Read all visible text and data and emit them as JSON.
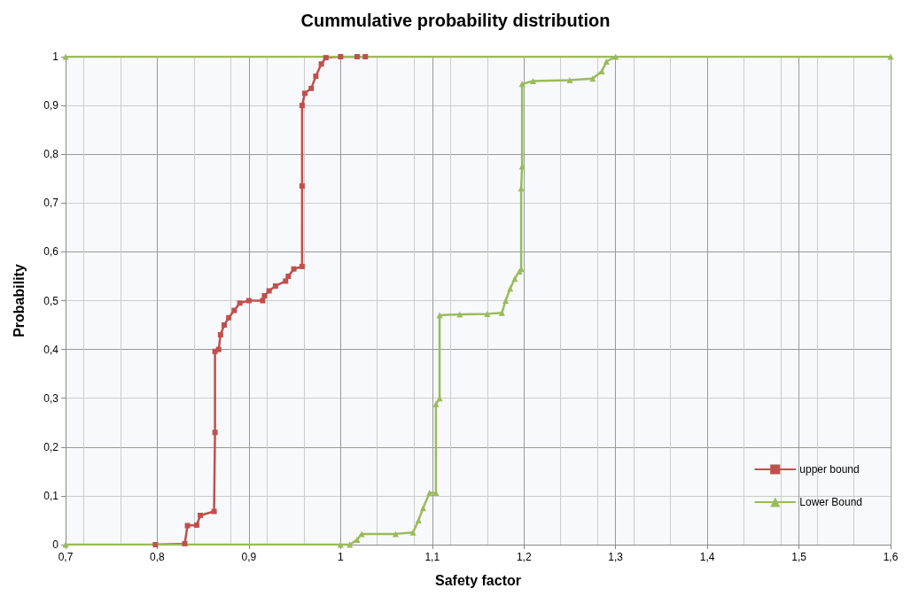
{
  "chart_data": {
    "type": "line",
    "title": "Cummulative probability distribution",
    "xlabel": "Safety factor",
    "ylabel": "Probability",
    "xlim": [
      0.7,
      1.6
    ],
    "ylim": [
      0,
      1
    ],
    "xticks": [
      {
        "value": 0.7,
        "label": "0,7"
      },
      {
        "value": 0.8,
        "label": "0,8"
      },
      {
        "value": 0.9,
        "label": "0,9"
      },
      1,
      {
        "value": 1.1,
        "label": "1,1"
      },
      {
        "value": 1.2,
        "label": "1,2"
      },
      {
        "value": 1.3,
        "label": "1,3"
      },
      {
        "value": 1.4,
        "label": "1,4"
      },
      {
        "value": 1.5,
        "label": "1,5"
      },
      {
        "value": 1.6,
        "label": "1,6"
      }
    ],
    "yticks": [
      0,
      {
        "value": 0.1,
        "label": "0,1"
      },
      {
        "value": 0.2,
        "label": "0,2"
      },
      {
        "value": 0.3,
        "label": "0,3"
      },
      {
        "value": 0.4,
        "label": "0,4"
      },
      {
        "value": 0.5,
        "label": "0,5"
      },
      {
        "value": 0.6,
        "label": "0,6"
      },
      {
        "value": 0.7,
        "label": "0,7"
      },
      {
        "value": 0.8,
        "label": "0,8"
      },
      {
        "value": 0.9,
        "label": "0,9"
      },
      1
    ],
    "grid": true,
    "legend": "bottom right",
    "series": [
      {
        "name": "upper bound",
        "color": "#c0504d",
        "marker": "square",
        "x": [
          0.798,
          0.83,
          0.833,
          0.843,
          0.847,
          0.862,
          0.863,
          0.863,
          0.867,
          0.869,
          0.873,
          0.878,
          0.884,
          0.89,
          0.9,
          0.915,
          0.917,
          0.922,
          0.929,
          0.94,
          0.943,
          0.949,
          0.958,
          0.958,
          0.958,
          0.961,
          0.968,
          0.973,
          0.979,
          0.984,
          1.0,
          1.018,
          1.027
        ],
        "values": [
          0,
          0.002,
          0.039,
          0.04,
          0.06,
          0.068,
          0.23,
          0.396,
          0.4,
          0.43,
          0.45,
          0.465,
          0.48,
          0.495,
          0.5,
          0.5,
          0.51,
          0.52,
          0.53,
          0.54,
          0.55,
          0.565,
          0.57,
          0.735,
          0.9,
          0.925,
          0.935,
          0.96,
          0.985,
          0.998,
          1,
          1,
          1
        ]
      },
      {
        "name": "Lower Bound",
        "color": "#9bbb59",
        "marker": "triangle",
        "x": [
          0.7,
          1.0,
          1.01,
          1.018,
          1.023,
          1.06,
          1.079,
          1.085,
          1.09,
          1.097,
          1.104,
          1.104,
          1.108,
          1.108,
          1.13,
          1.16,
          1.176,
          1.18,
          1.185,
          1.19,
          1.195,
          1.197,
          1.197,
          1.198,
          1.198,
          1.21,
          1.25,
          1.275,
          1.285,
          1.29,
          1.3,
          1.6,
          0.7
        ],
        "values": [
          0,
          0,
          0,
          0.01,
          0.022,
          0.022,
          0.025,
          0.05,
          0.075,
          0.106,
          0.106,
          0.288,
          0.3,
          0.47,
          0.472,
          0.473,
          0.475,
          0.5,
          0.525,
          0.545,
          0.56,
          0.565,
          0.73,
          0.775,
          0.944,
          0.95,
          0.952,
          0.955,
          0.97,
          0.99,
          1,
          1,
          1
        ]
      }
    ]
  }
}
